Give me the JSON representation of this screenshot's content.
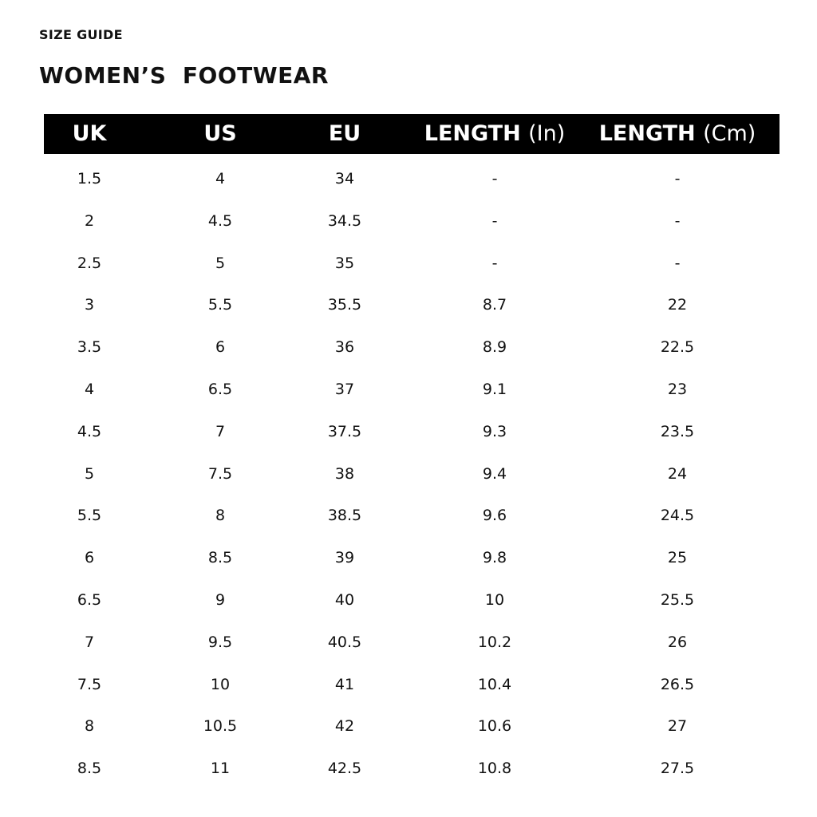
{
  "kicker": "SIZE GUIDE",
  "title": "WOMEN’S  FOOTWEAR",
  "header": [
    {
      "label": "UK",
      "unit": ""
    },
    {
      "label": "US",
      "unit": ""
    },
    {
      "label": "EU",
      "unit": ""
    },
    {
      "label": "LENGTH",
      "unit": "(In)"
    },
    {
      "label": "LENGTH",
      "unit": "(Cm)"
    }
  ],
  "rows": [
    [
      "1.5",
      "4",
      "34",
      "-",
      "-"
    ],
    [
      "2",
      "4.5",
      "34.5",
      "-",
      "-"
    ],
    [
      "2.5",
      "5",
      "35",
      "-",
      "-"
    ],
    [
      "3",
      "5.5",
      "35.5",
      "8.7",
      "22"
    ],
    [
      "3.5",
      "6",
      "36",
      "8.9",
      "22.5"
    ],
    [
      "4",
      "6.5",
      "37",
      "9.1",
      "23"
    ],
    [
      "4.5",
      "7",
      "37.5",
      "9.3",
      "23.5"
    ],
    [
      "5",
      "7.5",
      "38",
      "9.4",
      "24"
    ],
    [
      "5.5",
      "8",
      "38.5",
      "9.6",
      "24.5"
    ],
    [
      "6",
      "8.5",
      "39",
      "9.8",
      "25"
    ],
    [
      "6.5",
      "9",
      "40",
      "10",
      "25.5"
    ],
    [
      "7",
      "9.5",
      "40.5",
      "10.2",
      "26"
    ],
    [
      "7.5",
      "10",
      "41",
      "10.4",
      "26.5"
    ],
    [
      "8",
      "10.5",
      "42",
      "10.6",
      "27"
    ],
    [
      "8.5",
      "11",
      "42.5",
      "10.8",
      "27.5"
    ]
  ],
  "colors": {
    "header_bg": "#000000",
    "header_text": "#ffffff",
    "text": "#111111"
  }
}
